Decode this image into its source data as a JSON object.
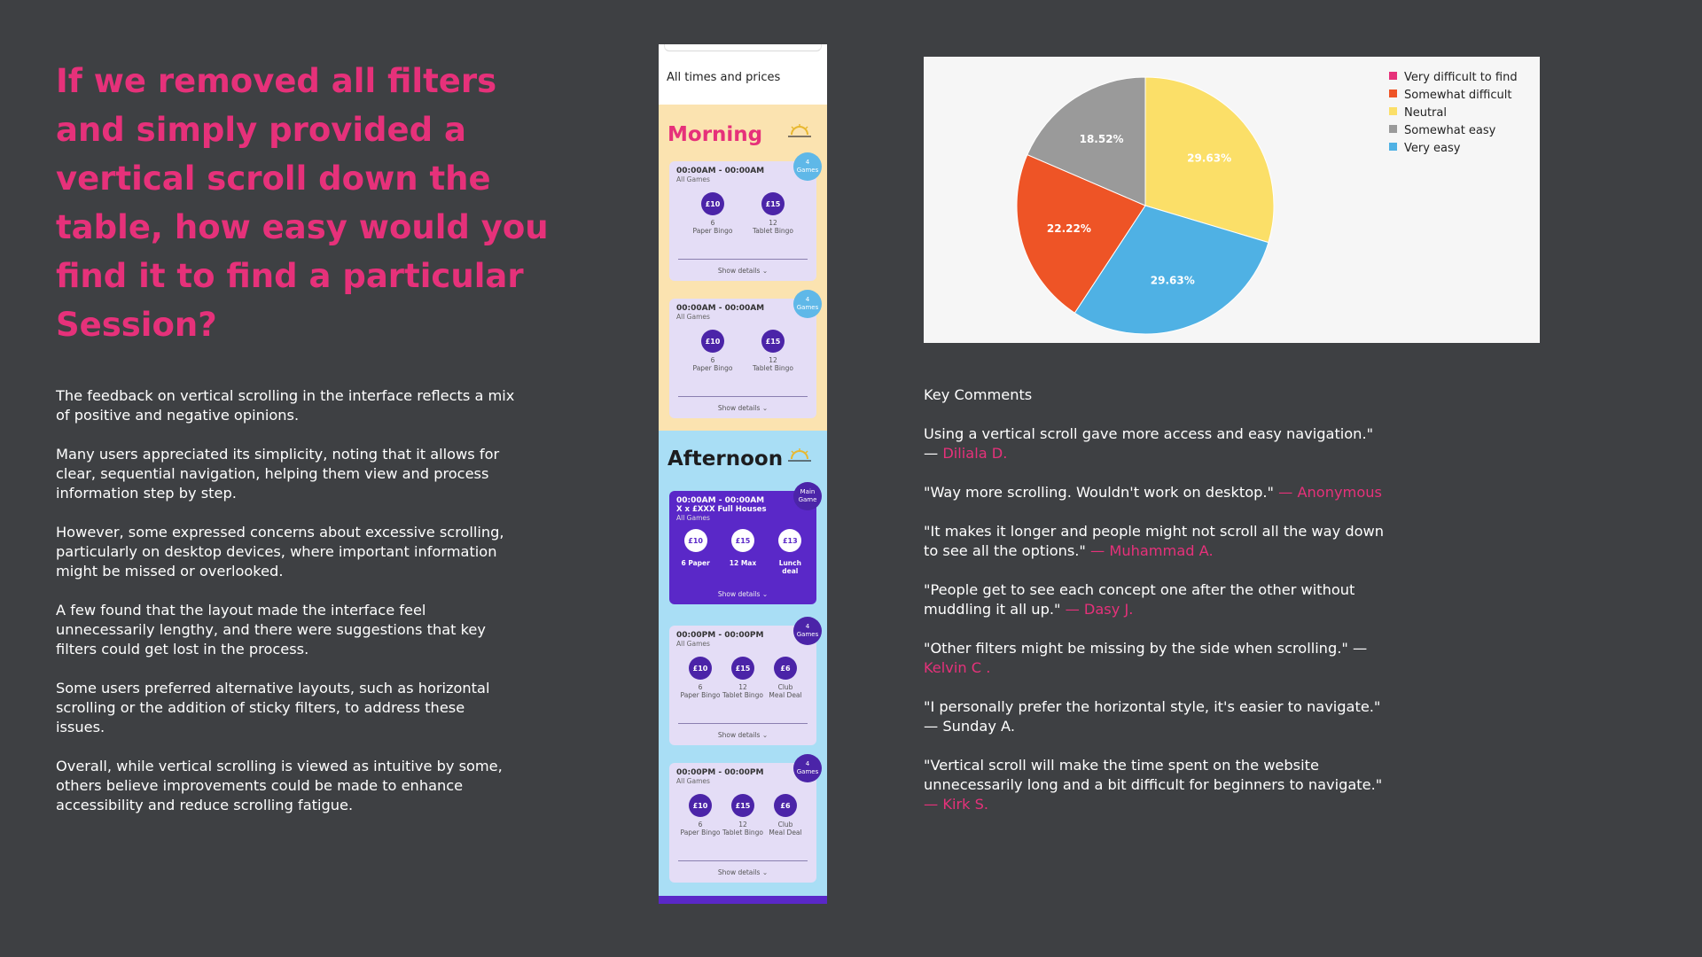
{
  "question": "If we removed all filters and simply provided a vertical scroll down the table, how easy would you find it to find a particular Session?",
  "summary": [
    "The feedback on vertical scrolling in the interface reflects a mix of positive and negative opinions.",
    "Many users appreciated its simplicity, noting that it allows for clear, sequential navigation, helping them view and process information step by step.",
    "However, some expressed concerns about excessive scrolling, particularly on desktop devices, where important information might be missed or overlooked.",
    "A few found that the layout made the interface feel unnecessarily lengthy, and there were suggestions that key filters could get lost in the process.",
    "Some users preferred alternative layouts, such as horizontal scrolling or the addition of sticky filters, to address these issues.",
    "Overall, while vertical scrolling is viewed as intuitive by some, others believe improvements could be made to enhance accessibility and reduce scrolling fatigue."
  ],
  "phone": {
    "times_label": "All times and prices",
    "morning": {
      "title": "Morning",
      "cards": [
        {
          "time": "00:00AM - 00:00AM",
          "sub": "All Games",
          "badge_num": "4",
          "badge_label": "Games",
          "prices": [
            {
              "price": "£10",
              "count": "6",
              "label": "Paper Bingo"
            },
            {
              "price": "£15",
              "count": "12",
              "label": "Tablet Bingo"
            }
          ],
          "show": "Show  details"
        },
        {
          "time": "00:00AM - 00:00AM",
          "sub": "All Games",
          "badge_num": "4",
          "badge_label": "Games",
          "prices": [
            {
              "price": "£10",
              "count": "6",
              "label": "Paper Bingo"
            },
            {
              "price": "£15",
              "count": "12",
              "label": "Tablet Bingo"
            }
          ],
          "show": "Show  details"
        }
      ]
    },
    "afternoon": {
      "title": "Afternoon",
      "main_card": {
        "time": "00:00AM - 00:00AM",
        "title": "X x £XXX Full Houses",
        "sub": "All Games",
        "badge_num": "Main",
        "badge_label": "Game",
        "prices": [
          {
            "price": "£10",
            "label": "6 Paper"
          },
          {
            "price": "£15",
            "label": "12 Max"
          },
          {
            "price": "£13",
            "label": "Lunch deal"
          }
        ],
        "show": "Show  details"
      },
      "cards": [
        {
          "time": "00:00PM - 00:00PM",
          "sub": "All Games",
          "badge_num": "4",
          "badge_label": "Games",
          "prices": [
            {
              "price": "£10",
              "count": "6",
              "label": "Paper Bingo"
            },
            {
              "price": "£15",
              "count": "12",
              "label": "Tablet Bingo"
            },
            {
              "price": "£6",
              "count": "Club",
              "label": "Meal Deal"
            }
          ],
          "show": "Show  details"
        },
        {
          "time": "00:00PM - 00:00PM",
          "sub": "All Games",
          "badge_num": "4",
          "badge_label": "Games",
          "prices": [
            {
              "price": "£10",
              "count": "6",
              "label": "Paper Bingo"
            },
            {
              "price": "£15",
              "count": "12",
              "label": "Tablet Bingo"
            },
            {
              "price": "£6",
              "count": "Club",
              "label": "Meal Deal"
            }
          ],
          "show": "Show  details"
        }
      ]
    }
  },
  "chart_data": {
    "type": "pie",
    "title": "",
    "legend_position": "top-right",
    "categories": [
      "Very difficult to find",
      "Somewhat difficult",
      "Neutral",
      "Somewhat easy",
      "Very easy"
    ],
    "values": [
      0,
      22.22,
      29.63,
      18.52,
      29.63
    ],
    "labels": [
      "",
      "22.22%",
      "29.63%",
      "18.52%",
      "29.63%"
    ],
    "colors": [
      "#e6317a",
      "#ee5426",
      "#fbdf68",
      "#9a9a9a",
      "#4fb1e4"
    ],
    "slice_order": [
      "Neutral",
      "Very easy",
      "Somewhat difficult",
      "Somewhat easy"
    ]
  },
  "comments_heading": "Key Comments",
  "comments": [
    {
      "text": "Using a vertical scroll gave more access and easy navigation.\" —",
      "author": "Diliala D."
    },
    {
      "text": "\"Way more scrolling. Wouldn't work on desktop.\"",
      "author": "— Anonymous"
    },
    {
      "text": "\"It makes it longer and people might not scroll all the way down to see all the options.\"",
      "author": "— Muhammad A."
    },
    {
      "text": "\"People get to see each concept one after the other without muddling it all up.\"",
      "author": "— Dasy J."
    },
    {
      "text": "\"Other filters might be missing by the side when scrolling.\" —",
      "author": "Kelvin C ."
    },
    {
      "text": "\"I personally prefer the horizontal style, it's easier to navigate.\" — Sunday A.",
      "author": ""
    },
    {
      "text": "\"Vertical scroll will make the time spent on the website unnecessarily long and a bit difficult for beginners to navigate.\"",
      "author": "— Kirk S."
    }
  ]
}
